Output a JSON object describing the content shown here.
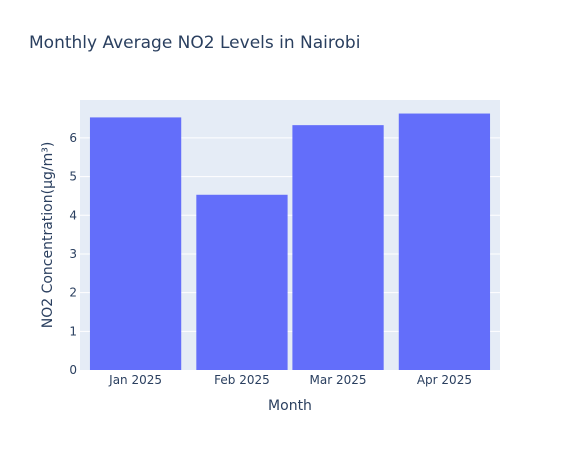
{
  "chart_data": {
    "type": "bar",
    "title": "Monthly Average NO2 Levels in Nairobi",
    "xlabel": "Month",
    "ylabel": "NO2 Concentration(µg/m³)",
    "categories": [
      "Jan 2025",
      "Feb 2025",
      "Mar 2025",
      "Apr 2025"
    ],
    "x_dates": [
      "2025-01-01",
      "2025-02-01",
      "2025-03-01",
      "2025-04-01"
    ],
    "values": [
      6.53,
      4.53,
      6.33,
      6.63
    ],
    "ylim": [
      0,
      6.98
    ],
    "yticks": [
      0,
      1,
      2,
      3,
      4,
      5,
      6
    ],
    "grid": true,
    "colors": {
      "bar": "#636efa",
      "plot_bg": "#e5ecf6",
      "text": "#2a3f5f",
      "grid": "#ffffff"
    }
  }
}
